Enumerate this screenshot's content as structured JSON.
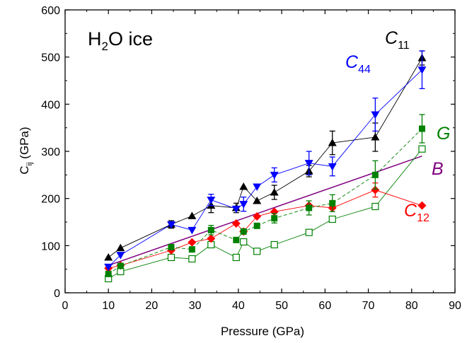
{
  "chart_data": {
    "type": "scatter",
    "xlabel": "Pressure (GPa)",
    "ylabel": {
      "main": "C",
      "sub": "ij",
      "rest": " (GPa)"
    },
    "title": {
      "main": "H",
      "sub": "2",
      "rest": "O ice"
    },
    "xlim": [
      0,
      90
    ],
    "ylim": [
      0,
      600
    ],
    "xticks": [
      0,
      10,
      20,
      30,
      40,
      50,
      60,
      70,
      80,
      90
    ],
    "yticks": [
      0,
      100,
      200,
      300,
      400,
      500,
      600
    ],
    "colors": {
      "c11": "#000000",
      "c44": "#0000ff",
      "g": "#008000",
      "b": "#800080",
      "c12": "#ff0000",
      "open": "#008000"
    },
    "series": [
      {
        "id": "c11",
        "name": {
          "main": "C",
          "sub": "11"
        },
        "marker": "triangle-up",
        "line": "solid",
        "points": [
          {
            "x": 10,
            "y": 75
          },
          {
            "x": 12.8,
            "y": 95
          },
          {
            "x": 24.5,
            "y": 145
          },
          {
            "x": 29.3,
            "y": 163
          },
          {
            "x": 33.7,
            "y": 185
          },
          {
            "x": 39.5,
            "y": 180
          },
          {
            "x": 41.2,
            "y": 225
          },
          {
            "x": 44.3,
            "y": 195
          },
          {
            "x": 48.3,
            "y": 213
          },
          {
            "x": 56.3,
            "y": 258
          },
          {
            "x": 61.7,
            "y": 318
          },
          {
            "x": 71.6,
            "y": 330
          },
          {
            "x": 82.4,
            "y": 498
          }
        ],
        "errors": [
          0,
          0,
          8,
          0,
          15,
          10,
          0,
          0,
          15,
          12,
          25,
          30,
          15
        ]
      },
      {
        "id": "c44",
        "name": {
          "main": "C",
          "sub": "44"
        },
        "marker": "triangle-down",
        "line": "solid",
        "points": [
          {
            "x": 10,
            "y": 55
          },
          {
            "x": 12.8,
            "y": 80
          },
          {
            "x": 24.5,
            "y": 145
          },
          {
            "x": 29.3,
            "y": 133
          },
          {
            "x": 33.7,
            "y": 197
          },
          {
            "x": 39.5,
            "y": 178
          },
          {
            "x": 41.2,
            "y": 188
          },
          {
            "x": 44.3,
            "y": 225
          },
          {
            "x": 48.3,
            "y": 250
          },
          {
            "x": 56.3,
            "y": 275
          },
          {
            "x": 61.7,
            "y": 268
          },
          {
            "x": 71.6,
            "y": 378
          },
          {
            "x": 82.4,
            "y": 473
          }
        ],
        "errors": [
          0,
          0,
          0,
          0,
          12,
          0,
          15,
          0,
          15,
          25,
          20,
          35,
          40
        ]
      },
      {
        "id": "g",
        "name": {
          "main": "G",
          "sub": ""
        },
        "marker": "square",
        "line": "dashed",
        "points": [
          {
            "x": 10,
            "y": 40
          },
          {
            "x": 12.8,
            "y": 57
          },
          {
            "x": 24.5,
            "y": 97
          },
          {
            "x": 29.3,
            "y": 92
          },
          {
            "x": 33.7,
            "y": 133
          },
          {
            "x": 39.5,
            "y": 112
          },
          {
            "x": 41.2,
            "y": 130
          },
          {
            "x": 44.3,
            "y": 142
          },
          {
            "x": 48.3,
            "y": 158
          },
          {
            "x": 56.3,
            "y": 180
          },
          {
            "x": 61.7,
            "y": 190
          },
          {
            "x": 71.6,
            "y": 250
          },
          {
            "x": 82.4,
            "y": 348
          }
        ],
        "errors": [
          0,
          0,
          0,
          0,
          10,
          0,
          0,
          0,
          10,
          15,
          18,
          30,
          30
        ]
      },
      {
        "id": "c12",
        "name": {
          "main": "C",
          "sub": "12"
        },
        "marker": "diamond",
        "line": "solid",
        "points": [
          {
            "x": 10,
            "y": 52
          },
          {
            "x": 12.8,
            "y": 58
          },
          {
            "x": 24.5,
            "y": 90
          },
          {
            "x": 29.3,
            "y": 107
          },
          {
            "x": 33.7,
            "y": 115
          },
          {
            "x": 39.5,
            "y": 147
          },
          {
            "x": 41.2,
            "y": 130
          },
          {
            "x": 44.3,
            "y": 162
          },
          {
            "x": 48.3,
            "y": 172
          },
          {
            "x": 56.3,
            "y": 185
          },
          {
            "x": 61.7,
            "y": 180
          },
          {
            "x": 71.6,
            "y": 218
          },
          {
            "x": 82.4,
            "y": 185
          }
        ],
        "errors": [
          0,
          0,
          0,
          0,
          0,
          0,
          0,
          0,
          0,
          0,
          0,
          15,
          0
        ]
      },
      {
        "id": "open",
        "name": {
          "main": "",
          "sub": ""
        },
        "marker": "open-square",
        "line": "solid",
        "points": [
          {
            "x": 10,
            "y": 30
          },
          {
            "x": 12.8,
            "y": 45
          },
          {
            "x": 24.5,
            "y": 75
          },
          {
            "x": 29.3,
            "y": 72
          },
          {
            "x": 33.7,
            "y": 102
          },
          {
            "x": 39.5,
            "y": 75
          },
          {
            "x": 41.2,
            "y": 108
          },
          {
            "x": 44.3,
            "y": 88
          },
          {
            "x": 48.3,
            "y": 102
          },
          {
            "x": 56.3,
            "y": 128
          },
          {
            "x": 61.7,
            "y": 156
          },
          {
            "x": 71.6,
            "y": 183
          },
          {
            "x": 82.4,
            "y": 305
          }
        ],
        "errors": [
          0,
          0,
          0,
          0,
          0,
          0,
          0,
          0,
          0,
          0,
          0,
          0,
          0
        ]
      },
      {
        "id": "b",
        "name": {
          "main": "B",
          "sub": ""
        },
        "marker": "none",
        "line": "solid",
        "points": [
          {
            "x": 10,
            "y": 58
          },
          {
            "x": 82.4,
            "y": 290
          }
        ],
        "errors": [
          0,
          0
        ]
      }
    ]
  }
}
